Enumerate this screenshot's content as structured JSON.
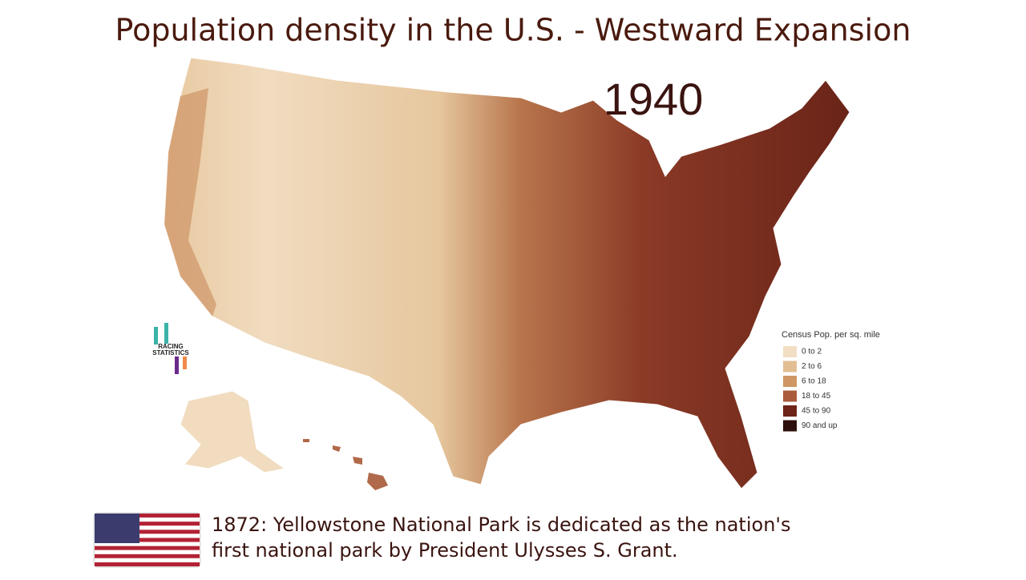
{
  "header": {
    "title": "Population density in the U.S. - Westward Expansion"
  },
  "map": {
    "year": "1940",
    "legend": {
      "title": "Census Pop. per sq. mile",
      "items": [
        {
          "label": "0 to 2",
          "color": "#f2dec4"
        },
        {
          "label": "2 to 6",
          "color": "#e2bf93"
        },
        {
          "label": "6 to 18",
          "color": "#cf9763"
        },
        {
          "label": "18 to 45",
          "color": "#a95c3c"
        },
        {
          "label": "45 to 90",
          "color": "#6e2418"
        },
        {
          "label": "90 and up",
          "color": "#2e110c"
        }
      ]
    }
  },
  "logo": {
    "lines": [
      "RACING",
      "STATISTICS"
    ]
  },
  "caption": {
    "lines": [
      "1872: Yellowstone National Park is dedicated as the nation's",
      "first national park by President Ulysses S. Grant."
    ]
  }
}
